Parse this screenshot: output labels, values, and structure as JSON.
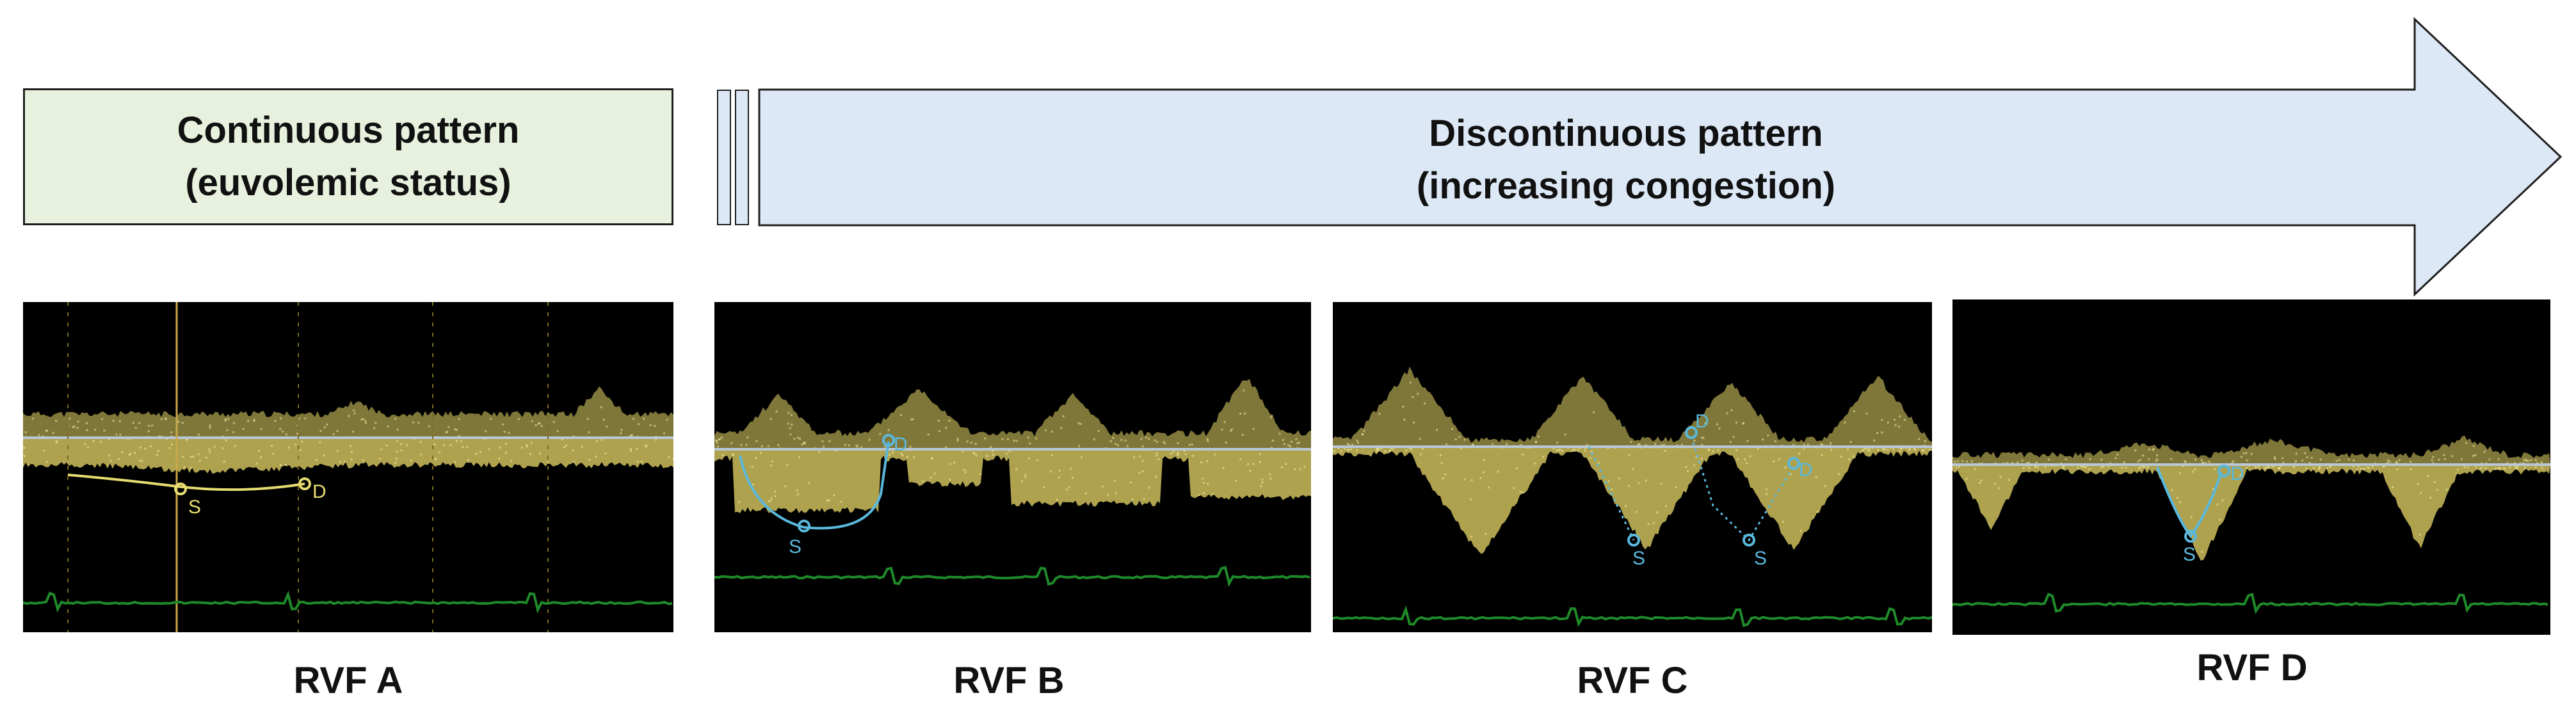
{
  "continuous_box": {
    "line1": "Continuous pattern",
    "line2": "(euvolemic status)",
    "fill": "#e7f1de"
  },
  "discontinuous_arrow": {
    "line1": "Discontinuous pattern",
    "line2": "(increasing congestion)",
    "fill": "#dde8f6"
  },
  "panels": [
    {
      "caption": "RVF A",
      "markers": [
        "S",
        "D"
      ],
      "pattern": "continuous"
    },
    {
      "caption": "RVF B",
      "markers": [
        "S",
        "D"
      ],
      "pattern": "discontinuous-monophasic"
    },
    {
      "caption": "RVF C",
      "markers": [
        "S",
        "D",
        "S",
        "D"
      ],
      "pattern": "discontinuous-biphasic"
    },
    {
      "caption": "RVF D",
      "markers": [
        "S",
        "D"
      ],
      "pattern": "discontinuous-monophasic-systolic"
    }
  ],
  "colors": {
    "doppler_signal": "#e8d86a",
    "ecg_trace": "#1f8a2a",
    "tracing_continuous": "#e6dc70",
    "tracing_discontinuous": "#5ab8dc"
  }
}
